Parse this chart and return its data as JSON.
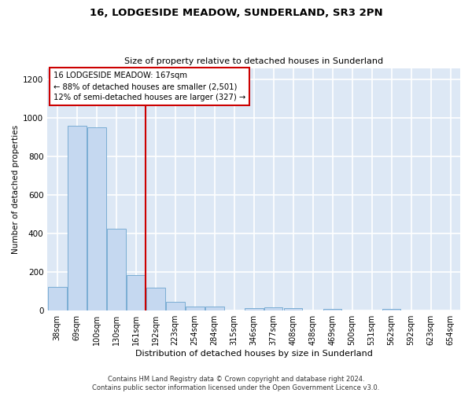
{
  "title": "16, LODGESIDE MEADOW, SUNDERLAND, SR3 2PN",
  "subtitle": "Size of property relative to detached houses in Sunderland",
  "xlabel": "Distribution of detached houses by size in Sunderland",
  "ylabel": "Number of detached properties",
  "categories": [
    "38sqm",
    "69sqm",
    "100sqm",
    "130sqm",
    "161sqm",
    "192sqm",
    "223sqm",
    "254sqm",
    "284sqm",
    "315sqm",
    "346sqm",
    "377sqm",
    "408sqm",
    "438sqm",
    "469sqm",
    "500sqm",
    "531sqm",
    "562sqm",
    "592sqm",
    "623sqm",
    "654sqm"
  ],
  "values": [
    125,
    960,
    950,
    425,
    185,
    120,
    45,
    22,
    22,
    0,
    15,
    18,
    12,
    0,
    10,
    0,
    0,
    10,
    0,
    0,
    0
  ],
  "bar_color": "#c5d8f0",
  "bar_edge_color": "#7aadd4",
  "annotation_text": "16 LODGESIDE MEADOW: 167sqm\n← 88% of detached houses are smaller (2,501)\n12% of semi-detached houses are larger (327) →",
  "annotation_box_color": "#ffffff",
  "annotation_box_edge": "#cc0000",
  "annotation_line_color": "#cc0000",
  "annotation_line_index": 4,
  "ylim": [
    0,
    1260
  ],
  "yticks": [
    0,
    200,
    400,
    600,
    800,
    1000,
    1200
  ],
  "background_color": "#dde8f5",
  "grid_color": "#ffffff",
  "fig_bg_color": "#ffffff",
  "footer": "Contains HM Land Registry data © Crown copyright and database right 2024.\nContains public sector information licensed under the Open Government Licence v3.0.",
  "title_fontsize": 9.5,
  "subtitle_fontsize": 8,
  "ylabel_fontsize": 7.5,
  "xlabel_fontsize": 8,
  "tick_fontsize": 7,
  "footer_fontsize": 6
}
